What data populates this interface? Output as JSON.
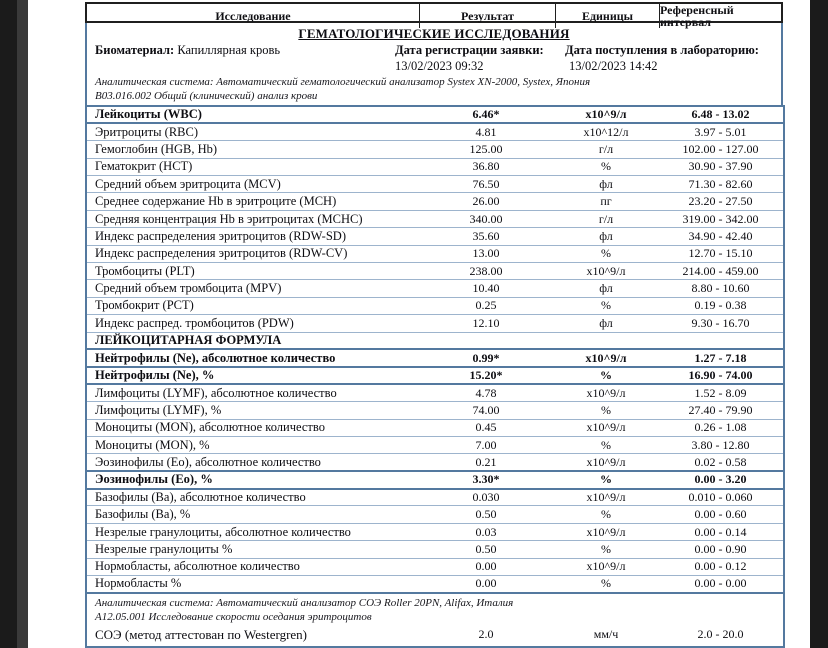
{
  "colors": {
    "table_border_blue": "#54799f",
    "row_separator_blue": "#9db4cd",
    "header_border_black": "#1f1f1f",
    "side_strip_black": "#1b1b1b",
    "side_strip_gray": "#3a3a3a"
  },
  "table": {
    "columns": [
      "Исследование",
      "Результат",
      "Единицы",
      "Референсный интервал"
    ]
  },
  "report": {
    "section_title": "ГЕМАТОЛОГИЧЕСКИЕ ИССЛЕДОВАНИЯ",
    "biomaterial_label": "Биоматериал:",
    "biomaterial_value": "Капиллярная кровь",
    "registration_label": "Дата регистрации заявки:",
    "registration_value": "13/02/2023 09:32",
    "received_label": "Дата поступления в лабораторию:",
    "received_value": "13/02/2023 14:42",
    "analyzer_note_1": "Аналитическая система: Автоматический гематологический анализатор Systex XN-2000, Systex, Япония",
    "analyzer_note_2": "В03.016.002 Общий (клинический) анализ крови"
  },
  "rows": [
    {
      "type": "test",
      "name": "Лейкоциты (WBC)",
      "result": "6.46*",
      "units": "x10^9/л",
      "ref": "6.48 - 13.02",
      "abnormal": true
    },
    {
      "type": "test",
      "name": "Эритроциты (RBC)",
      "result": "4.81",
      "units": "x10^12/л",
      "ref": "3.97 - 5.01"
    },
    {
      "type": "test",
      "name": "Гемоглобин (HGB, Hb)",
      "result": "125.00",
      "units": "г/л",
      "ref": "102.00 - 127.00"
    },
    {
      "type": "test",
      "name": "Гематокрит (HCT)",
      "result": "36.80",
      "units": "%",
      "ref": "30.90 - 37.90"
    },
    {
      "type": "test",
      "name": "Средний объем эритроцита (MCV)",
      "result": "76.50",
      "units": "фл",
      "ref": "71.30 - 82.60"
    },
    {
      "type": "test",
      "name": "Среднее содержание Hb в эритроците (MCH)",
      "result": "26.00",
      "units": "пг",
      "ref": "23.20 - 27.50"
    },
    {
      "type": "test",
      "name": "Средняя концентрация Hb в эритроцитах (MCHC)",
      "result": "340.00",
      "units": "г/л",
      "ref": "319.00 - 342.00"
    },
    {
      "type": "test",
      "name": "Индекс распределения эритроцитов (RDW-SD)",
      "result": "35.60",
      "units": "фл",
      "ref": "34.90 - 42.40"
    },
    {
      "type": "test",
      "name": "Индекс распределения эритроцитов (RDW-CV)",
      "result": "13.00",
      "units": "%",
      "ref": "12.70 - 15.10"
    },
    {
      "type": "test",
      "name": "Тромбоциты (PLT)",
      "result": "238.00",
      "units": "x10^9/л",
      "ref": "214.00 - 459.00"
    },
    {
      "type": "test",
      "name": "Средний объем тромбоцита (MPV)",
      "result": "10.40",
      "units": "фл",
      "ref": "8.80 - 10.60"
    },
    {
      "type": "test",
      "name": "Тромбокрит (PCT)",
      "result": "0.25",
      "units": "%",
      "ref": "0.19 - 0.38"
    },
    {
      "type": "test",
      "name": "Индекс распред. тромбоцитов (PDW)",
      "result": "12.10",
      "units": "фл",
      "ref": "9.30 - 16.70"
    },
    {
      "type": "section",
      "name": "ЛЕЙКОЦИТАРНАЯ ФОРМУЛА"
    },
    {
      "type": "test",
      "name": "Нейтрофилы (Ne), абсолютное количество",
      "result": "0.99*",
      "units": "x10^9/л",
      "ref": "1.27 - 7.18",
      "abnormal": true
    },
    {
      "type": "test",
      "name": "Нейтрофилы (Ne), %",
      "result": "15.20*",
      "units": "%",
      "ref": "16.90 - 74.00",
      "abnormal": true
    },
    {
      "type": "test",
      "name": "Лимфоциты (LYMF), абсолютное количество",
      "result": "4.78",
      "units": "x10^9/л",
      "ref": "1.52 - 8.09"
    },
    {
      "type": "test",
      "name": "Лимфоциты (LYMF), %",
      "result": "74.00",
      "units": "%",
      "ref": "27.40 - 79.90"
    },
    {
      "type": "test",
      "name": "Моноциты (MON), абсолютное количество",
      "result": "0.45",
      "units": "x10^9/л",
      "ref": "0.26 - 1.08"
    },
    {
      "type": "test",
      "name": "Моноциты (MON), %",
      "result": "7.00",
      "units": "%",
      "ref": "3.80 - 12.80"
    },
    {
      "type": "test",
      "name": "Эозинофилы (Eo), абсолютное количество",
      "result": "0.21",
      "units": "x10^9/л",
      "ref": "0.02 - 0.58"
    },
    {
      "type": "test",
      "name": "Эозинофилы (Eo), %",
      "result": "3.30*",
      "units": "%",
      "ref": "0.00 - 3.20",
      "abnormal": true
    },
    {
      "type": "test",
      "name": "Базофилы (Ba), абсолютное количество",
      "result": "0.030",
      "units": "x10^9/л",
      "ref": "0.010 - 0.060"
    },
    {
      "type": "test",
      "name": "Базофилы (Ba), %",
      "result": "0.50",
      "units": "%",
      "ref": "0.00 - 0.60"
    },
    {
      "type": "test",
      "name": "Незрелые гранулоциты, абсолютное количество",
      "result": "0.03",
      "units": "x10^9/л",
      "ref": "0.00 - 0.14"
    },
    {
      "type": "test",
      "name": "Незрелые гранулоциты %",
      "result": "0.50",
      "units": "%",
      "ref": "0.00 - 0.90"
    },
    {
      "type": "test",
      "name": "Нормобласты, абсолютное количество",
      "result": "0.00",
      "units": "x10^9/л",
      "ref": "0.00 - 0.12"
    },
    {
      "type": "test",
      "name": "Нормобласты %",
      "result": "0.00",
      "units": "%",
      "ref": "0.00 - 0.00"
    },
    {
      "type": "note",
      "lines": [
        "Аналитическая система: Автоматический анализатор СОЭ Roller 20PN, Alifax, Италия",
        "А12.05.001 Исследование скорости оседания эритроцитов"
      ]
    },
    {
      "type": "esr",
      "name": "СОЭ (метод аттестован по Westergren)",
      "result": "2.0",
      "units": "мм/ч",
      "ref": "2.0 - 20.0"
    }
  ]
}
